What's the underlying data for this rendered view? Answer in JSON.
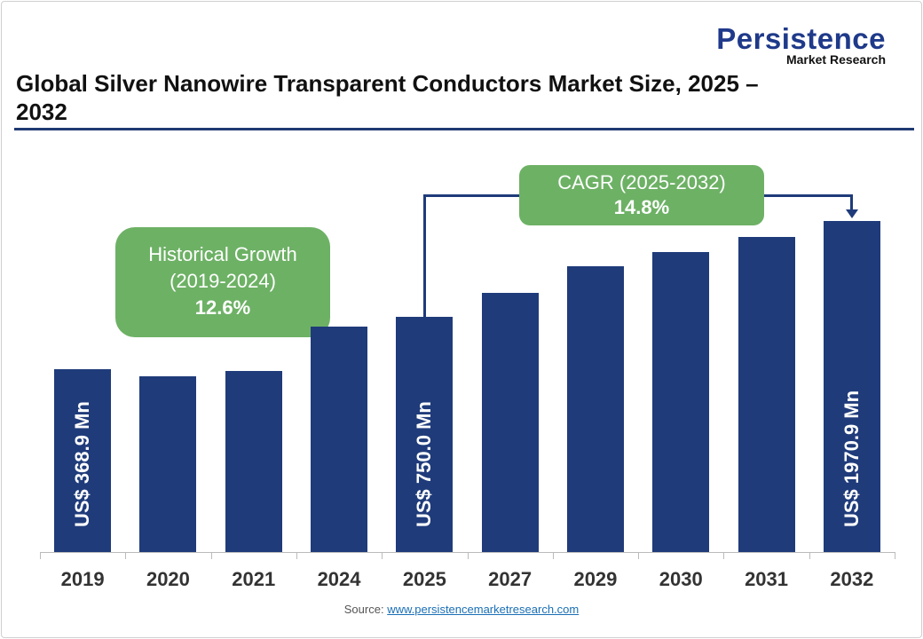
{
  "title": "Global Silver Nanowire Transparent Conductors Market Size, 2025 – 2032",
  "logo": {
    "line1": "Persistence",
    "line2": "Market Research"
  },
  "source": {
    "label": "Source:",
    "link": "www.persistencemarketresearch.com"
  },
  "colors": {
    "bar": "#1f3b7a",
    "bubble": "#6db165",
    "rule": "#1f3a73"
  },
  "chart_data": {
    "type": "bar",
    "title": "Global Silver Nanowire Transparent Conductors Market Size, 2025 – 2032",
    "categories": [
      "2019",
      "2020",
      "2021",
      "2024",
      "2025",
      "2027",
      "2029",
      "2030",
      "2031",
      "2032"
    ],
    "values": [
      368.9,
      330,
      360,
      668,
      750,
      988,
      1302,
      1495,
      1716,
      1970.9
    ],
    "unit": "US$ Mn",
    "data_labels": [
      {
        "category": "2019",
        "text": "US$ 368.9 Mn"
      },
      {
        "category": "2025",
        "text": "US$ 750.0 Mn"
      },
      {
        "category": "2032",
        "text": "US$ 1970.9 Mn"
      }
    ],
    "annotations": [
      {
        "line1": "Historical Growth",
        "line2": "(2019-2024)",
        "value": "12.6%"
      },
      {
        "line1": "CAGR (2025-2032)",
        "value": "14.8%"
      }
    ],
    "grid": false,
    "legend": "none"
  }
}
